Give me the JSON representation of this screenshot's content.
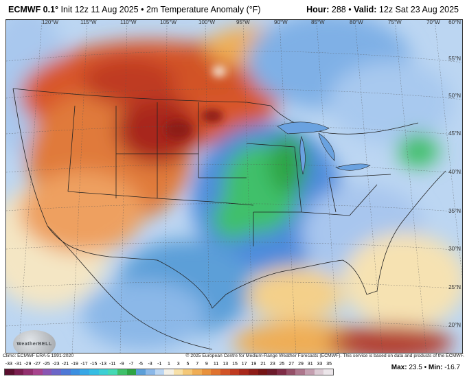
{
  "header": {
    "model": "ECMWF 0.1°",
    "init": "Init 12z 11 Aug 2025",
    "field": "2m Temperature Anomaly (°F)",
    "hour_label": "Hour:",
    "hour": "288",
    "valid_label": "Valid:",
    "valid": "12z Sat 23 Aug 2025"
  },
  "map": {
    "lon_labels": [
      "120°W",
      "115°W",
      "110°W",
      "105°W",
      "100°W",
      "95°W",
      "90°W",
      "85°W",
      "80°W",
      "75°W",
      "70°W"
    ],
    "lat_labels": [
      "60°N",
      "55°N",
      "50°N",
      "45°N",
      "40°N",
      "35°N",
      "30°N",
      "25°N",
      "20°N"
    ],
    "logo_text": "WeatherBELL"
  },
  "footer": {
    "climo": "Climo: ECMWF ERA-5 1991-2020",
    "copyright": "© 2025 European Centre for Medium-Range Weather Forecasts (ECMWF). This service is based on data and products of the ECMWF."
  },
  "scale": {
    "ticks": [
      "-33",
      "-31",
      "-29",
      "-27",
      "-25",
      "-23",
      "-21",
      "-19",
      "-17",
      "-15",
      "-13",
      "-11",
      "-9",
      "-7",
      "-5",
      "-3",
      "-1",
      "1",
      "3",
      "5",
      "7",
      "9",
      "11",
      "13",
      "15",
      "17",
      "19",
      "21",
      "23",
      "25",
      "27",
      "29",
      "31",
      "33",
      "35"
    ],
    "colors": [
      "#5a0f2e",
      "#7a1e4f",
      "#93306f",
      "#a8448e",
      "#8a56b3",
      "#6c66c7",
      "#4e78d6",
      "#3c8fe0",
      "#38a7e6",
      "#36bde3",
      "#3dcfd4",
      "#45d9b5",
      "#3fc06a",
      "#2ea444",
      "#5c9fd8",
      "#8bb8e8",
      "#bcd6f2",
      "#f4f0e6",
      "#f7e0a8",
      "#f4c878",
      "#efad55",
      "#e8913c",
      "#df7330",
      "#d15327",
      "#bf3a20",
      "#a8281b",
      "#8e1c17",
      "#741414",
      "#6b1a2a",
      "#7f2c46",
      "#955068",
      "#ad768c",
      "#c49fb0",
      "#dccbd4",
      "#ece6ea"
    ],
    "max_label": "Max:",
    "max": "23.5",
    "min_label": "Min:",
    "min": "-16.7"
  }
}
